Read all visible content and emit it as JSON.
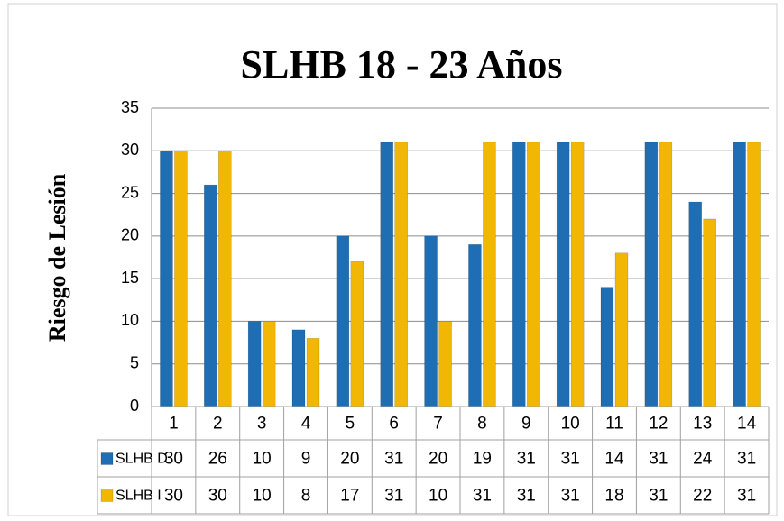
{
  "chart_data": {
    "type": "bar",
    "title": "SLHB 18 - 23 Años",
    "y_label": "Riesgo de Lesión",
    "categories": [
      "1",
      "2",
      "3",
      "4",
      "5",
      "6",
      "7",
      "8",
      "9",
      "10",
      "11",
      "12",
      "13",
      "14"
    ],
    "series": [
      {
        "name": "SLHB D",
        "color": "#1f6db2",
        "values": [
          30,
          26,
          10,
          9,
          20,
          31,
          20,
          19,
          31,
          31,
          14,
          31,
          24,
          31
        ]
      },
      {
        "name": "SLHB I",
        "color": "#f2b705",
        "values": [
          30,
          30,
          10,
          8,
          17,
          31,
          10,
          31,
          31,
          31,
          18,
          31,
          22,
          31
        ]
      }
    ],
    "ylim": [
      0,
      35
    ],
    "yticks": [
      0,
      5,
      10,
      15,
      20,
      25,
      30,
      35
    ],
    "grid": true,
    "data_table": true
  }
}
